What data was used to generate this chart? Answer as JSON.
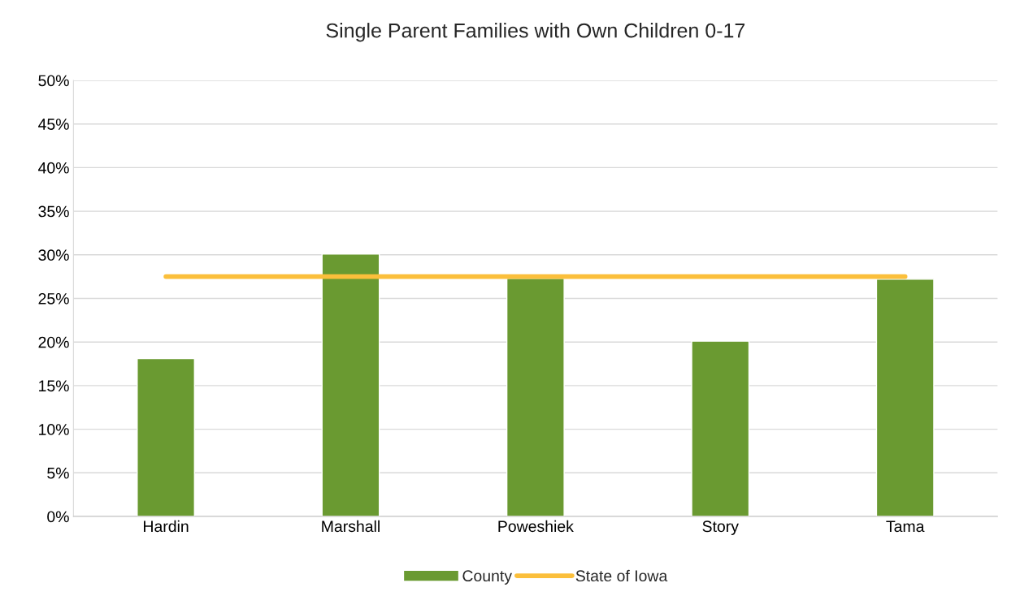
{
  "chart_data": {
    "type": "bar",
    "title": "Single Parent Families with Own Children 0-17",
    "categories": [
      "Hardin",
      "Marshall",
      "Poweshiek",
      "Story",
      "Tama"
    ],
    "series": [
      {
        "name": "County",
        "color": "#6a9a31",
        "values": [
          18.1,
          30.1,
          27.3,
          20.1,
          27.2
        ]
      },
      {
        "name": "State of Iowa",
        "type": "line",
        "color": "#fbbf3b",
        "values": [
          27.5,
          27.5,
          27.5,
          27.5,
          27.5
        ]
      }
    ],
    "ylim": [
      0,
      50
    ],
    "yticks": [
      {
        "value": 0,
        "label": "0%"
      },
      {
        "value": 5,
        "label": "5%"
      },
      {
        "value": 10,
        "label": "10%"
      },
      {
        "value": 15,
        "label": "15%"
      },
      {
        "value": 20,
        "label": "20%"
      },
      {
        "value": 25,
        "label": "25%"
      },
      {
        "value": 30,
        "label": "30%"
      },
      {
        "value": 35,
        "label": "35%"
      },
      {
        "value": 40,
        "label": "40%"
      },
      {
        "value": 45,
        "label": "45%"
      },
      {
        "value": 50,
        "label": "50%"
      }
    ],
    "grid": "y",
    "legend": "bottom",
    "marker": "none"
  }
}
